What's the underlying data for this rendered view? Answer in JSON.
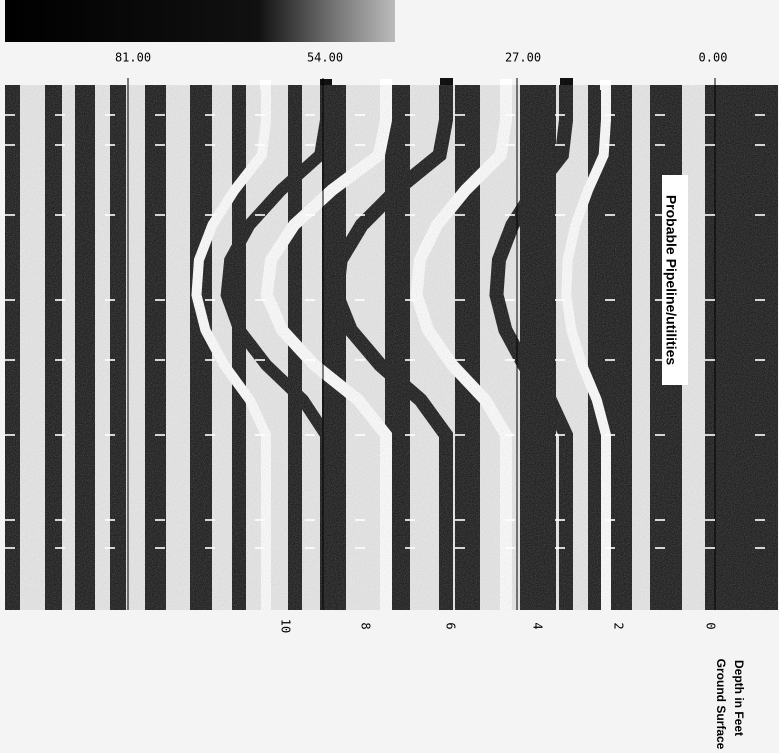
{
  "distance_labels": [
    "81.00",
    "54.00",
    "27.00",
    "0.00"
  ],
  "annotation": "Probable Pipeline/utilities",
  "depth_labels": [
    "0",
    "2",
    "4",
    "6",
    "8",
    "10"
  ],
  "depth_axis_title": "Depth in Feet",
  "ground_label": "Ground Surface"
}
